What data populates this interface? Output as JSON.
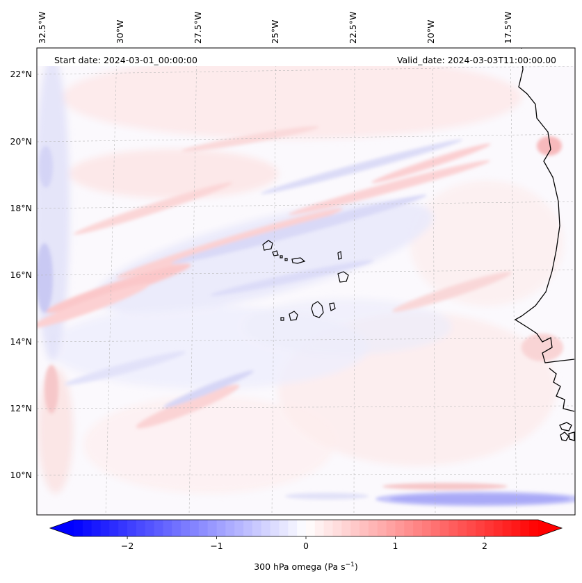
{
  "header": {
    "start_date": "Start date: 2024-03-01_00:00:00",
    "valid_date": "Valid_date: 2024-03-03T11:00:00.00"
  },
  "map": {
    "variable": "300 hPa omega",
    "lon_labels": [
      "32.5°W",
      "30°W",
      "27.5°W",
      "25°W",
      "22.5°W",
      "20°W",
      "17.5°W"
    ],
    "lat_labels": [
      "22°N",
      "20°N",
      "18°N",
      "16°N",
      "14°N",
      "12°N",
      "10°N"
    ],
    "gridlines": true,
    "coastline_color": "#000000"
  },
  "colorbar": {
    "label_main": "300 hPa omega (Pa s",
    "label_exp": "−1",
    "label_close": ")",
    "tick_labels": [
      "−2",
      "−1",
      "0",
      "1",
      "2"
    ],
    "tick_values": [
      -2,
      -1,
      0,
      1,
      2
    ],
    "vmin": -2.6,
    "vmax": 2.6,
    "extend": "both",
    "colormap": "bwr",
    "color_min": "#0000ff",
    "color_mid": "#ffffff",
    "color_max": "#ff0000"
  }
}
